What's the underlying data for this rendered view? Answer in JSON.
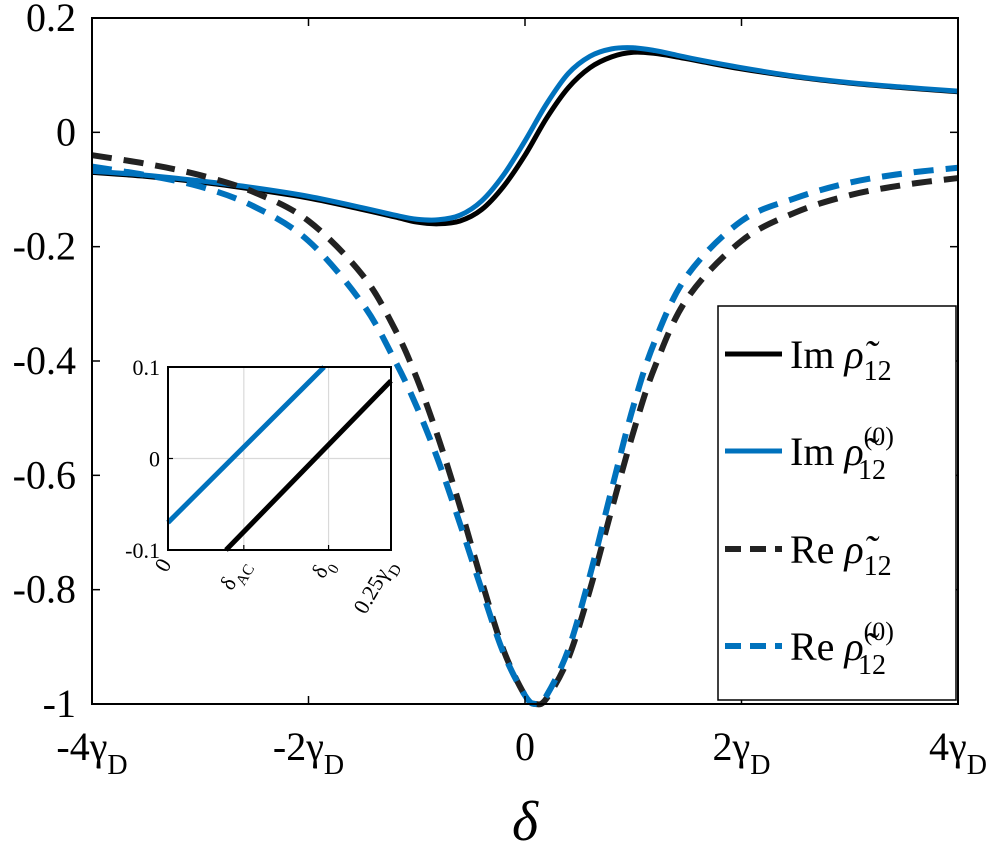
{
  "chart_data": [
    {
      "type": "line",
      "xlabel": "δ",
      "ylabel": "",
      "xlim": [
        -4,
        4
      ],
      "ylim": [
        -1,
        0.2
      ],
      "x_unit_note": "x values in units of γD",
      "x_ticks": [
        {
          "value": -4,
          "label": "-4γ",
          "sub": "D"
        },
        {
          "value": -2,
          "label": "-2γ",
          "sub": "D"
        },
        {
          "value": 0,
          "label": "0",
          "sub": ""
        },
        {
          "value": 2,
          "label": "2γ",
          "sub": "D"
        },
        {
          "value": 4,
          "label": "4γ",
          "sub": "D"
        }
      ],
      "y_ticks": [
        {
          "value": 0.2,
          "label": "0.2"
        },
        {
          "value": 0,
          "label": "0"
        },
        {
          "value": -0.2,
          "label": "-0.2"
        },
        {
          "value": -0.4,
          "label": "-0.4"
        },
        {
          "value": -0.6,
          "label": "-0.6"
        },
        {
          "value": -0.8,
          "label": "-0.8"
        },
        {
          "value": -1,
          "label": "-1"
        }
      ],
      "legend_placement": "lower-right",
      "series": [
        {
          "name": "Im ρ̃12",
          "legend_main": "Im ",
          "legend_symbol": "ρ̃",
          "legend_sub": "12",
          "legend_sup": "",
          "color": "#000000",
          "dash": "solid",
          "x": [
            -4,
            -3.5,
            -3,
            -2.5,
            -2,
            -1.5,
            -1.2,
            -1,
            -0.8,
            -0.6,
            -0.4,
            -0.2,
            0,
            0.2,
            0.4,
            0.6,
            0.8,
            1,
            1.2,
            1.4,
            1.6,
            2,
            2.5,
            3,
            3.5,
            4
          ],
          "y": [
            -0.07,
            -0.077,
            -0.087,
            -0.1,
            -0.115,
            -0.135,
            -0.148,
            -0.157,
            -0.16,
            -0.155,
            -0.135,
            -0.095,
            -0.04,
            0.025,
            0.078,
            0.113,
            0.132,
            0.14,
            0.138,
            0.132,
            0.125,
            0.111,
            0.097,
            0.086,
            0.078,
            0.071
          ]
        },
        {
          "name": "Im ρ̃12(0)",
          "legend_main": "Im ",
          "legend_symbol": "ρ̃",
          "legend_sub": "12",
          "legend_sup": "(0)",
          "color": "#0072bd",
          "dash": "solid",
          "x": [
            -4,
            -3.5,
            -3,
            -2.5,
            -2,
            -1.5,
            -1.2,
            -1,
            -0.8,
            -0.6,
            -0.4,
            -0.2,
            0,
            0.2,
            0.4,
            0.6,
            0.8,
            1,
            1.2,
            1.4,
            1.6,
            2,
            2.5,
            3,
            3.5,
            4
          ],
          "y": [
            -0.068,
            -0.075,
            -0.085,
            -0.097,
            -0.112,
            -0.132,
            -0.145,
            -0.152,
            -0.153,
            -0.145,
            -0.12,
            -0.075,
            -0.015,
            0.05,
            0.103,
            0.133,
            0.146,
            0.148,
            0.143,
            0.135,
            0.127,
            0.113,
            0.098,
            0.087,
            0.079,
            0.072
          ]
        },
        {
          "name": "Re ρ̃12",
          "legend_main": "Re ",
          "legend_symbol": "ρ̃",
          "legend_sub": "12",
          "legend_sup": "",
          "color": "#222222",
          "dash": "dashed",
          "x": [
            -4,
            -3.5,
            -3,
            -2.5,
            -2,
            -1.5,
            -1.2,
            -1,
            -0.8,
            -0.6,
            -0.4,
            -0.2,
            0,
            0.1,
            0.2,
            0.4,
            0.6,
            0.8,
            1,
            1.2,
            1.5,
            2,
            2.5,
            3,
            3.5,
            4
          ],
          "y": [
            -0.04,
            -0.055,
            -0.075,
            -0.105,
            -0.155,
            -0.25,
            -0.345,
            -0.43,
            -0.535,
            -0.655,
            -0.785,
            -0.905,
            -0.985,
            -1,
            -0.99,
            -0.92,
            -0.8,
            -0.66,
            -0.525,
            -0.41,
            -0.29,
            -0.19,
            -0.14,
            -0.11,
            -0.092,
            -0.08
          ]
        },
        {
          "name": "Re ρ̃12(0)",
          "legend_main": "Re ",
          "legend_symbol": "ρ̃",
          "legend_sub": "12",
          "legend_sup": "(0)",
          "color": "#0072bd",
          "dash": "dashed",
          "x": [
            -4,
            -3.5,
            -3,
            -2.5,
            -2,
            -1.5,
            -1.2,
            -1,
            -0.8,
            -0.6,
            -0.4,
            -0.2,
            0,
            0.1,
            0.2,
            0.4,
            0.6,
            0.8,
            1,
            1.2,
            1.5,
            2,
            2.5,
            3,
            3.5,
            4
          ],
          "y": [
            -0.06,
            -0.075,
            -0.095,
            -0.13,
            -0.19,
            -0.3,
            -0.4,
            -0.48,
            -0.575,
            -0.685,
            -0.8,
            -0.91,
            -0.985,
            -1,
            -0.985,
            -0.905,
            -0.775,
            -0.625,
            -0.48,
            -0.365,
            -0.25,
            -0.155,
            -0.115,
            -0.088,
            -0.072,
            -0.062
          ]
        }
      ]
    },
    {
      "type": "line",
      "role": "inset",
      "xlim": [
        0,
        0.25
      ],
      "ylim": [
        -0.1,
        0.1
      ],
      "x_unit_note": "x values in units of γD",
      "x_ticks": [
        {
          "value": 0,
          "label": "0",
          "sub": ""
        },
        {
          "value": 0.085,
          "label": "δ",
          "sub": "AC"
        },
        {
          "value": 0.18,
          "label": "δ",
          "sub": "0"
        },
        {
          "value": 0.25,
          "label": "0.25γ",
          "sub": "D"
        }
      ],
      "y_ticks": [
        {
          "value": 0.1,
          "label": "0.1"
        },
        {
          "value": 0,
          "label": "0"
        },
        {
          "value": -0.1,
          "label": "-0.1"
        }
      ],
      "grid": true,
      "series": [
        {
          "color": "#0072bd",
          "x": [
            0,
            0.175
          ],
          "y": [
            -0.07,
            0.1
          ]
        },
        {
          "color": "#000000",
          "x": [
            0.065,
            0.25
          ],
          "y": [
            -0.1,
            0.085
          ]
        }
      ]
    }
  ]
}
